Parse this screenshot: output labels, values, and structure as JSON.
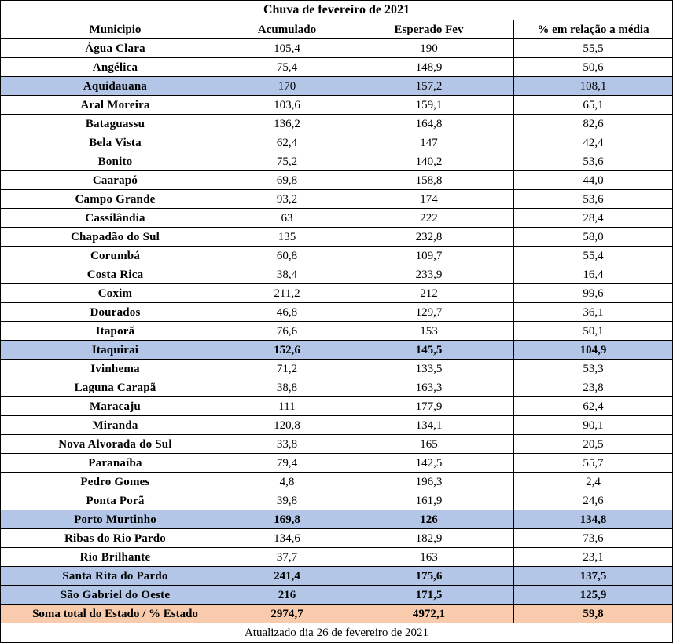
{
  "title": "Chuva de fevereiro de 2021",
  "headers": [
    "Municipio",
    "Acumulado",
    "Esperado Fev",
    "% em relação a média"
  ],
  "colors": {
    "highlight_row": "#b4c6e7",
    "total_row": "#f8cbad",
    "border": "#000000"
  },
  "rows": [
    {
      "municipio": "Água Clara",
      "acumulado": "105,4",
      "esperado": "190",
      "percent": "55,5",
      "highlight": false,
      "bold_values": false
    },
    {
      "municipio": "Angélica",
      "acumulado": "75,4",
      "esperado": "148,9",
      "percent": "50,6",
      "highlight": false,
      "bold_values": false
    },
    {
      "municipio": "Aquidauana",
      "acumulado": "170",
      "esperado": "157,2",
      "percent": "108,1",
      "highlight": true,
      "bold_values": false
    },
    {
      "municipio": "Aral Moreira",
      "acumulado": "103,6",
      "esperado": "159,1",
      "percent": "65,1",
      "highlight": false,
      "bold_values": false
    },
    {
      "municipio": "Bataguassu",
      "acumulado": "136,2",
      "esperado": "164,8",
      "percent": "82,6",
      "highlight": false,
      "bold_values": false
    },
    {
      "municipio": "Bela Vista",
      "acumulado": "62,4",
      "esperado": "147",
      "percent": "42,4",
      "highlight": false,
      "bold_values": false
    },
    {
      "municipio": "Bonito",
      "acumulado": "75,2",
      "esperado": "140,2",
      "percent": "53,6",
      "highlight": false,
      "bold_values": false
    },
    {
      "municipio": "Caarapó",
      "acumulado": "69,8",
      "esperado": "158,8",
      "percent": "44,0",
      "highlight": false,
      "bold_values": false
    },
    {
      "municipio": "Campo Grande",
      "acumulado": "93,2",
      "esperado": "174",
      "percent": "53,6",
      "highlight": false,
      "bold_values": false
    },
    {
      "municipio": "Cassilândia",
      "acumulado": "63",
      "esperado": "222",
      "percent": "28,4",
      "highlight": false,
      "bold_values": false
    },
    {
      "municipio": "Chapadão do Sul",
      "acumulado": "135",
      "esperado": "232,8",
      "percent": "58,0",
      "highlight": false,
      "bold_values": false
    },
    {
      "municipio": "Corumbá",
      "acumulado": "60,8",
      "esperado": "109,7",
      "percent": "55,4",
      "highlight": false,
      "bold_values": false
    },
    {
      "municipio": "Costa Rica",
      "acumulado": "38,4",
      "esperado": "233,9",
      "percent": "16,4",
      "highlight": false,
      "bold_values": false
    },
    {
      "municipio": "Coxim",
      "acumulado": "211,2",
      "esperado": "212",
      "percent": "99,6",
      "highlight": false,
      "bold_values": false
    },
    {
      "municipio": "Dourados",
      "acumulado": "46,8",
      "esperado": "129,7",
      "percent": "36,1",
      "highlight": false,
      "bold_values": false
    },
    {
      "municipio": "Itaporã",
      "acumulado": "76,6",
      "esperado": "153",
      "percent": "50,1",
      "highlight": false,
      "bold_values": false
    },
    {
      "municipio": "Itaquirai",
      "acumulado": "152,6",
      "esperado": "145,5",
      "percent": "104,9",
      "highlight": true,
      "bold_values": true
    },
    {
      "municipio": "Ivinhema",
      "acumulado": "71,2",
      "esperado": "133,5",
      "percent": "53,3",
      "highlight": false,
      "bold_values": false
    },
    {
      "municipio": "Laguna Carapã",
      "acumulado": "38,8",
      "esperado": "163,3",
      "percent": "23,8",
      "highlight": false,
      "bold_values": false
    },
    {
      "municipio": "Maracaju",
      "acumulado": "111",
      "esperado": "177,9",
      "percent": "62,4",
      "highlight": false,
      "bold_values": false
    },
    {
      "municipio": "Miranda",
      "acumulado": "120,8",
      "esperado": "134,1",
      "percent": "90,1",
      "highlight": false,
      "bold_values": false
    },
    {
      "municipio": "Nova Alvorada do Sul",
      "acumulado": "33,8",
      "esperado": "165",
      "percent": "20,5",
      "highlight": false,
      "bold_values": false
    },
    {
      "municipio": "Paranaíba",
      "acumulado": "79,4",
      "esperado": "142,5",
      "percent": "55,7",
      "highlight": false,
      "bold_values": false
    },
    {
      "municipio": "Pedro Gomes",
      "acumulado": "4,8",
      "esperado": "196,3",
      "percent": "2,4",
      "highlight": false,
      "bold_values": false
    },
    {
      "municipio": "Ponta Porã",
      "acumulado": "39,8",
      "esperado": "161,9",
      "percent": "24,6",
      "highlight": false,
      "bold_values": false
    },
    {
      "municipio": "Porto Murtinho",
      "acumulado": "169,8",
      "esperado": "126",
      "percent": "134,8",
      "highlight": true,
      "bold_values": true
    },
    {
      "municipio": "Ribas do Rio Pardo",
      "acumulado": "134,6",
      "esperado": "182,9",
      "percent": "73,6",
      "highlight": false,
      "bold_values": false
    },
    {
      "municipio": "Rio Brilhante",
      "acumulado": "37,7",
      "esperado": "163",
      "percent": "23,1",
      "highlight": false,
      "bold_values": false
    },
    {
      "municipio": "Santa Rita do Pardo",
      "acumulado": "241,4",
      "esperado": "175,6",
      "percent": "137,5",
      "highlight": true,
      "bold_values": true
    },
    {
      "municipio": "São Gabriel do Oeste",
      "acumulado": "216",
      "esperado": "171,5",
      "percent": "125,9",
      "highlight": true,
      "bold_values": true
    }
  ],
  "total": {
    "label": "Soma total do Estado / % Estado",
    "acumulado": "2974,7",
    "esperado": "4972,1",
    "percent": "59,8"
  },
  "footer": "Atualizado dia 26 de fevereiro de 2021"
}
